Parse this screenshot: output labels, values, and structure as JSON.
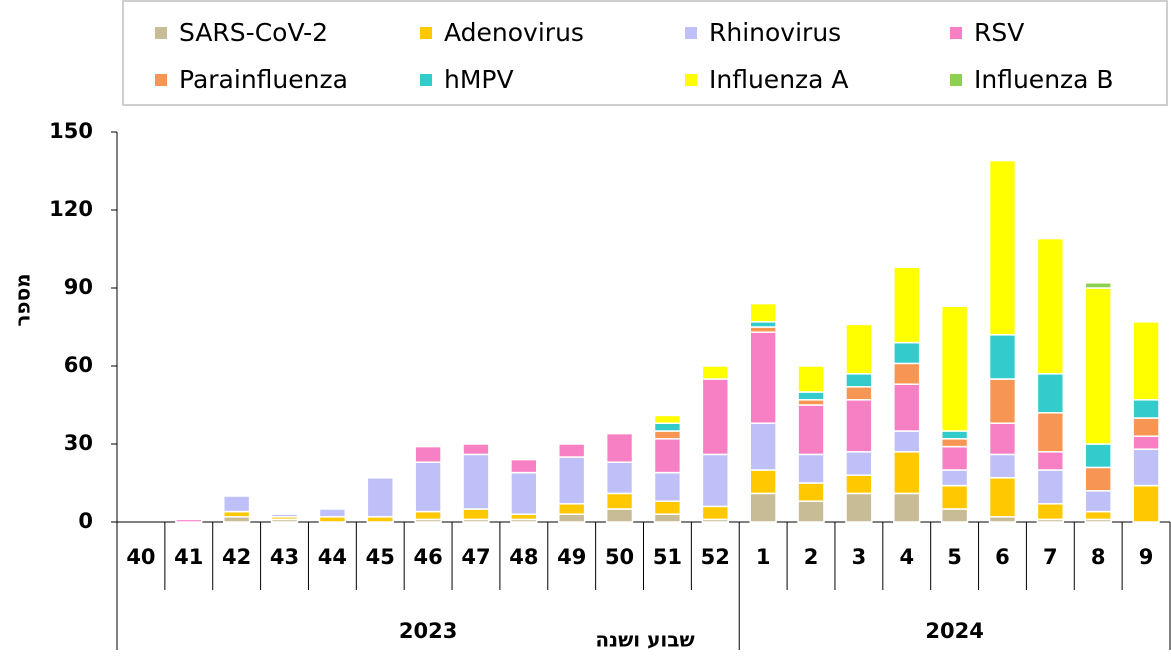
{
  "chart_data": {
    "type": "stacked_bar",
    "y_label": "מספר",
    "x_label": "שבוע ושנה",
    "category_groups": [
      {
        "label": "2023",
        "categories": [
          "40",
          "41",
          "42",
          "43",
          "44",
          "45",
          "46",
          "47",
          "48",
          "49",
          "50",
          "51",
          "52"
        ]
      },
      {
        "label": "2024",
        "categories": [
          "1",
          "2",
          "3",
          "4",
          "5",
          "6",
          "7",
          "8",
          "9"
        ]
      }
    ],
    "series": [
      {
        "name": "SARS-CoV-2",
        "color": "#c8bc96",
        "values": [
          0,
          0,
          2,
          1,
          0,
          0,
          1,
          1,
          1,
          3,
          5,
          3,
          1,
          11,
          8,
          11,
          11,
          5,
          2,
          1,
          1,
          0
        ]
      },
      {
        "name": "Adenovirus",
        "color": "#ffc800",
        "values": [
          0,
          0,
          2,
          1,
          2,
          2,
          3,
          4,
          2,
          4,
          6,
          5,
          5,
          9,
          7,
          7,
          16,
          9,
          15,
          6,
          3,
          14
        ]
      },
      {
        "name": "Rhinovirus",
        "color": "#c0c0f8",
        "values": [
          0,
          0,
          6,
          1,
          3,
          15,
          19,
          21,
          16,
          18,
          12,
          11,
          20,
          18,
          11,
          9,
          8,
          6,
          9,
          13,
          8,
          14
        ]
      },
      {
        "name": "RSV",
        "color": "#f77fc3",
        "values": [
          0,
          1,
          0,
          0,
          0,
          0,
          6,
          4,
          5,
          5,
          11,
          13,
          29,
          35,
          19,
          20,
          18,
          9,
          12,
          7,
          0,
          5
        ]
      },
      {
        "name": "Parainfluenza",
        "color": "#f79552",
        "values": [
          0,
          0,
          0,
          0,
          0,
          0,
          0,
          0,
          0,
          0,
          0,
          3,
          0,
          2,
          2,
          5,
          8,
          3,
          17,
          15,
          9,
          7
        ]
      },
      {
        "name": "hMPV",
        "color": "#33cccc",
        "values": [
          0,
          0,
          0,
          0,
          0,
          0,
          0,
          0,
          0,
          0,
          0,
          3,
          0,
          2,
          3,
          5,
          8,
          3,
          17,
          15,
          9,
          7
        ]
      },
      {
        "name": "Influenza A",
        "color": "#ffff00",
        "values": [
          0,
          0,
          0,
          0,
          0,
          0,
          0,
          0,
          0,
          0,
          0,
          3,
          5,
          7,
          10,
          19,
          29,
          48,
          67,
          52,
          60,
          30
        ]
      },
      {
        "name": "Influenza B",
        "color": "#8bd050",
        "values": [
          0,
          0,
          0,
          0,
          0,
          0,
          0,
          0,
          0,
          0,
          0,
          0,
          0,
          0,
          0,
          0,
          0,
          0,
          0,
          0,
          2,
          0
        ]
      }
    ],
    "ylim": [
      0,
      150
    ],
    "yticks": [
      0,
      30,
      60,
      90,
      120,
      150
    ],
    "grid": false
  }
}
